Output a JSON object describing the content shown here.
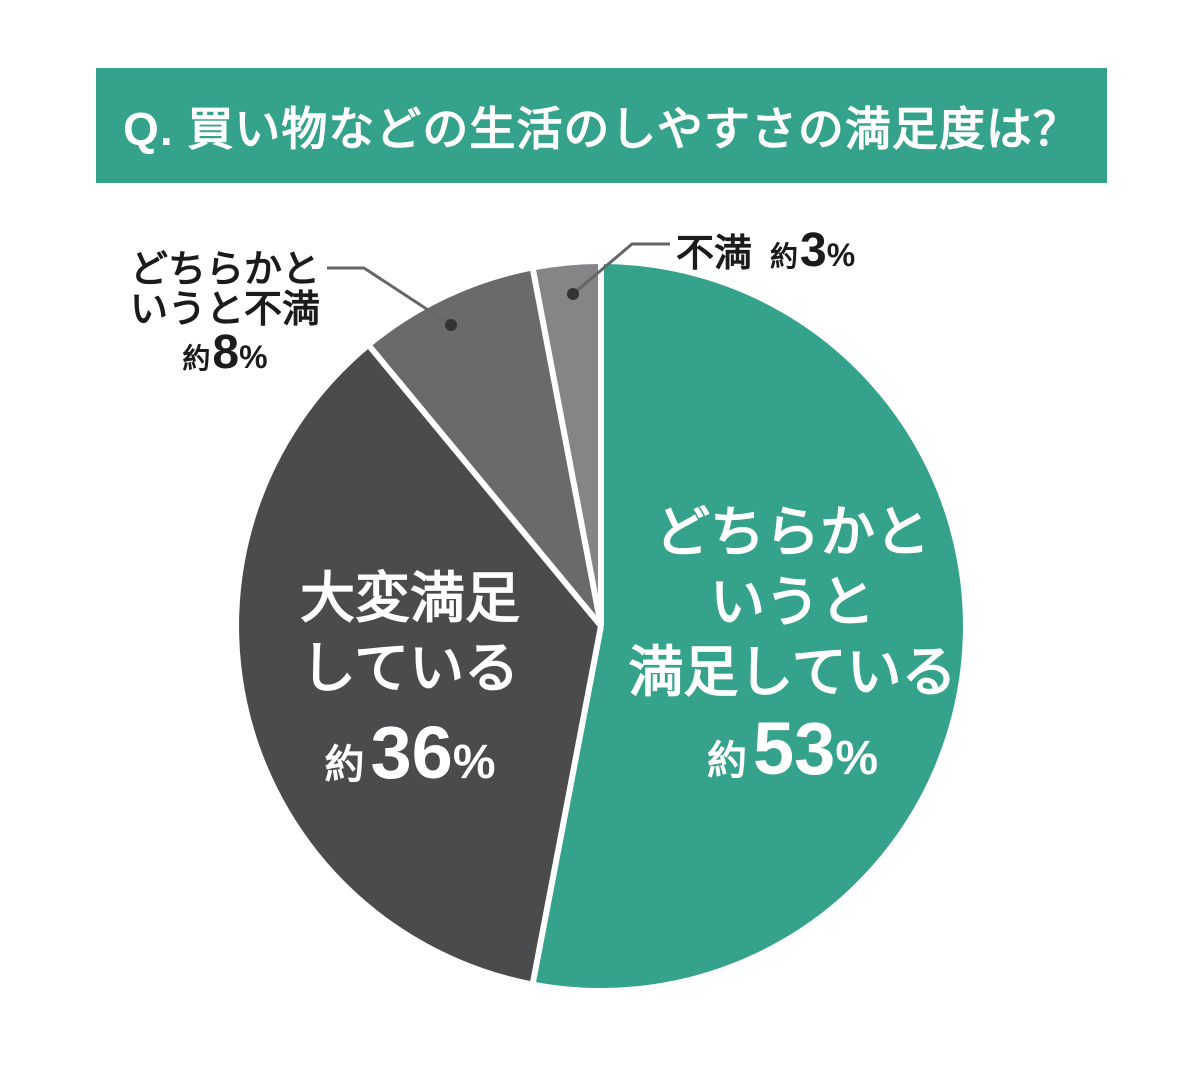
{
  "title": "Q. 買い物などの生活のしやすさの満足度は？",
  "colors": {
    "banner_bg": "#35a28b",
    "slice_teal": "#35a28b",
    "slice_dark": "#4b4b4d",
    "slice_medium": "#6a6a6c",
    "slice_light": "#858588",
    "label_on_slice": "#ffffff",
    "label_outside": "#1b1b1b",
    "leader_line": "#666666",
    "leader_dot": "#333333",
    "gap": "#ffffff"
  },
  "chart_data": {
    "type": "pie",
    "title": "買い物などの生活のしやすさの満足度",
    "categories": [
      "どちらかというと満足している",
      "大変満足している",
      "どちらかというと不満",
      "不満"
    ],
    "names": [
      "somewhat-satisfied",
      "very-satisfied",
      "somewhat-dissatisfied",
      "dissatisfied"
    ],
    "values": [
      53,
      36,
      8,
      3
    ],
    "approx_prefix": "約",
    "unit": "%",
    "colors": [
      "#35a28b",
      "#4b4b4d",
      "#6a6a6c",
      "#858588"
    ],
    "start_angle_deg": 0,
    "direction": "clockwise",
    "legend_position": "none",
    "data_labels": [
      "約53%",
      "約36%",
      "約8%",
      "約3%"
    ]
  },
  "labels": {
    "somewhat_satisfied": {
      "lines": [
        "どちらかと",
        "いうと",
        "満足している"
      ],
      "approx": "約",
      "value": "53",
      "unit": "%"
    },
    "very_satisfied": {
      "lines": [
        "大変満足",
        "している"
      ],
      "approx": "約",
      "value": "36",
      "unit": "%"
    },
    "somewhat_dissatisfied": {
      "lines": [
        "どちらかと",
        "いうと不満"
      ],
      "approx": "約",
      "value": "8",
      "unit": "%"
    },
    "dissatisfied": {
      "name": "不満",
      "approx": "約",
      "value": "3",
      "unit": "%"
    }
  }
}
